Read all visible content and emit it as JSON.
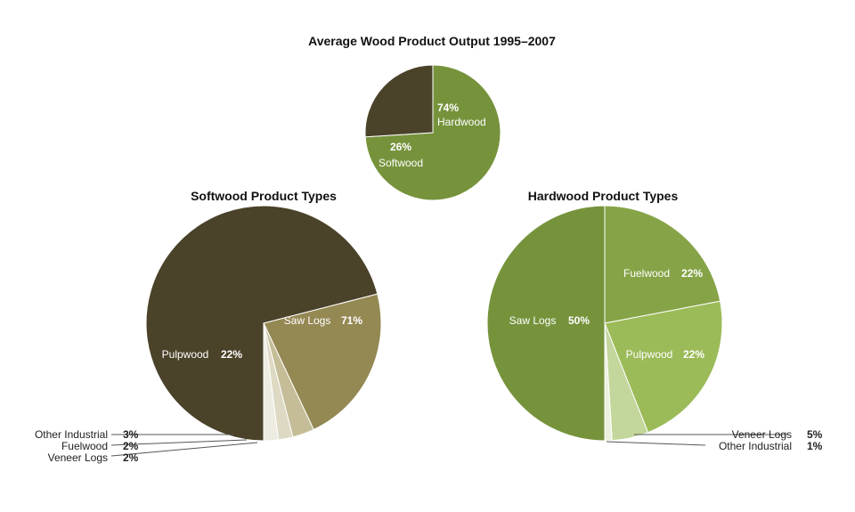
{
  "chart_data": [
    {
      "type": "pie",
      "title": "Average Wood Product Output 1995–2007",
      "slices": [
        {
          "name": "Hardwood",
          "value": 74,
          "label": "74%",
          "color": "#76933c"
        },
        {
          "name": "Softwood",
          "value": 26,
          "label": "26%",
          "color": "#4a4229"
        }
      ]
    },
    {
      "type": "pie",
      "title": "Softwood Product Types",
      "slices": [
        {
          "name": "Saw Logs",
          "value": 71,
          "label": "71%",
          "color": "#4a4229"
        },
        {
          "name": "Pulpwood",
          "value": 22,
          "label": "22%",
          "color": "#948853"
        },
        {
          "name": "Other Industrial",
          "value": 3,
          "label": "3%",
          "color": "#c4bd97"
        },
        {
          "name": "Fuelwood",
          "value": 2,
          "label": "2%",
          "color": "#ddd9c3"
        },
        {
          "name": "Veneer Logs",
          "value": 2,
          "label": "2%",
          "color": "#eeece1"
        }
      ]
    },
    {
      "type": "pie",
      "title": "Hardwood Product Types",
      "slices": [
        {
          "name": "Fuelwood",
          "value": 22,
          "label": "22%",
          "color": "#86a447"
        },
        {
          "name": "Pulpwood",
          "value": 22,
          "label": "22%",
          "color": "#9bbb59"
        },
        {
          "name": "Veneer Logs",
          "value": 5,
          "label": "5%",
          "color": "#c3d69b"
        },
        {
          "name": "Other Industrial",
          "value": 1,
          "label": "1%",
          "color": "#ebf1de"
        },
        {
          "name": "Saw Logs",
          "value": 50,
          "label": "50%",
          "color": "#76933c"
        }
      ]
    }
  ]
}
